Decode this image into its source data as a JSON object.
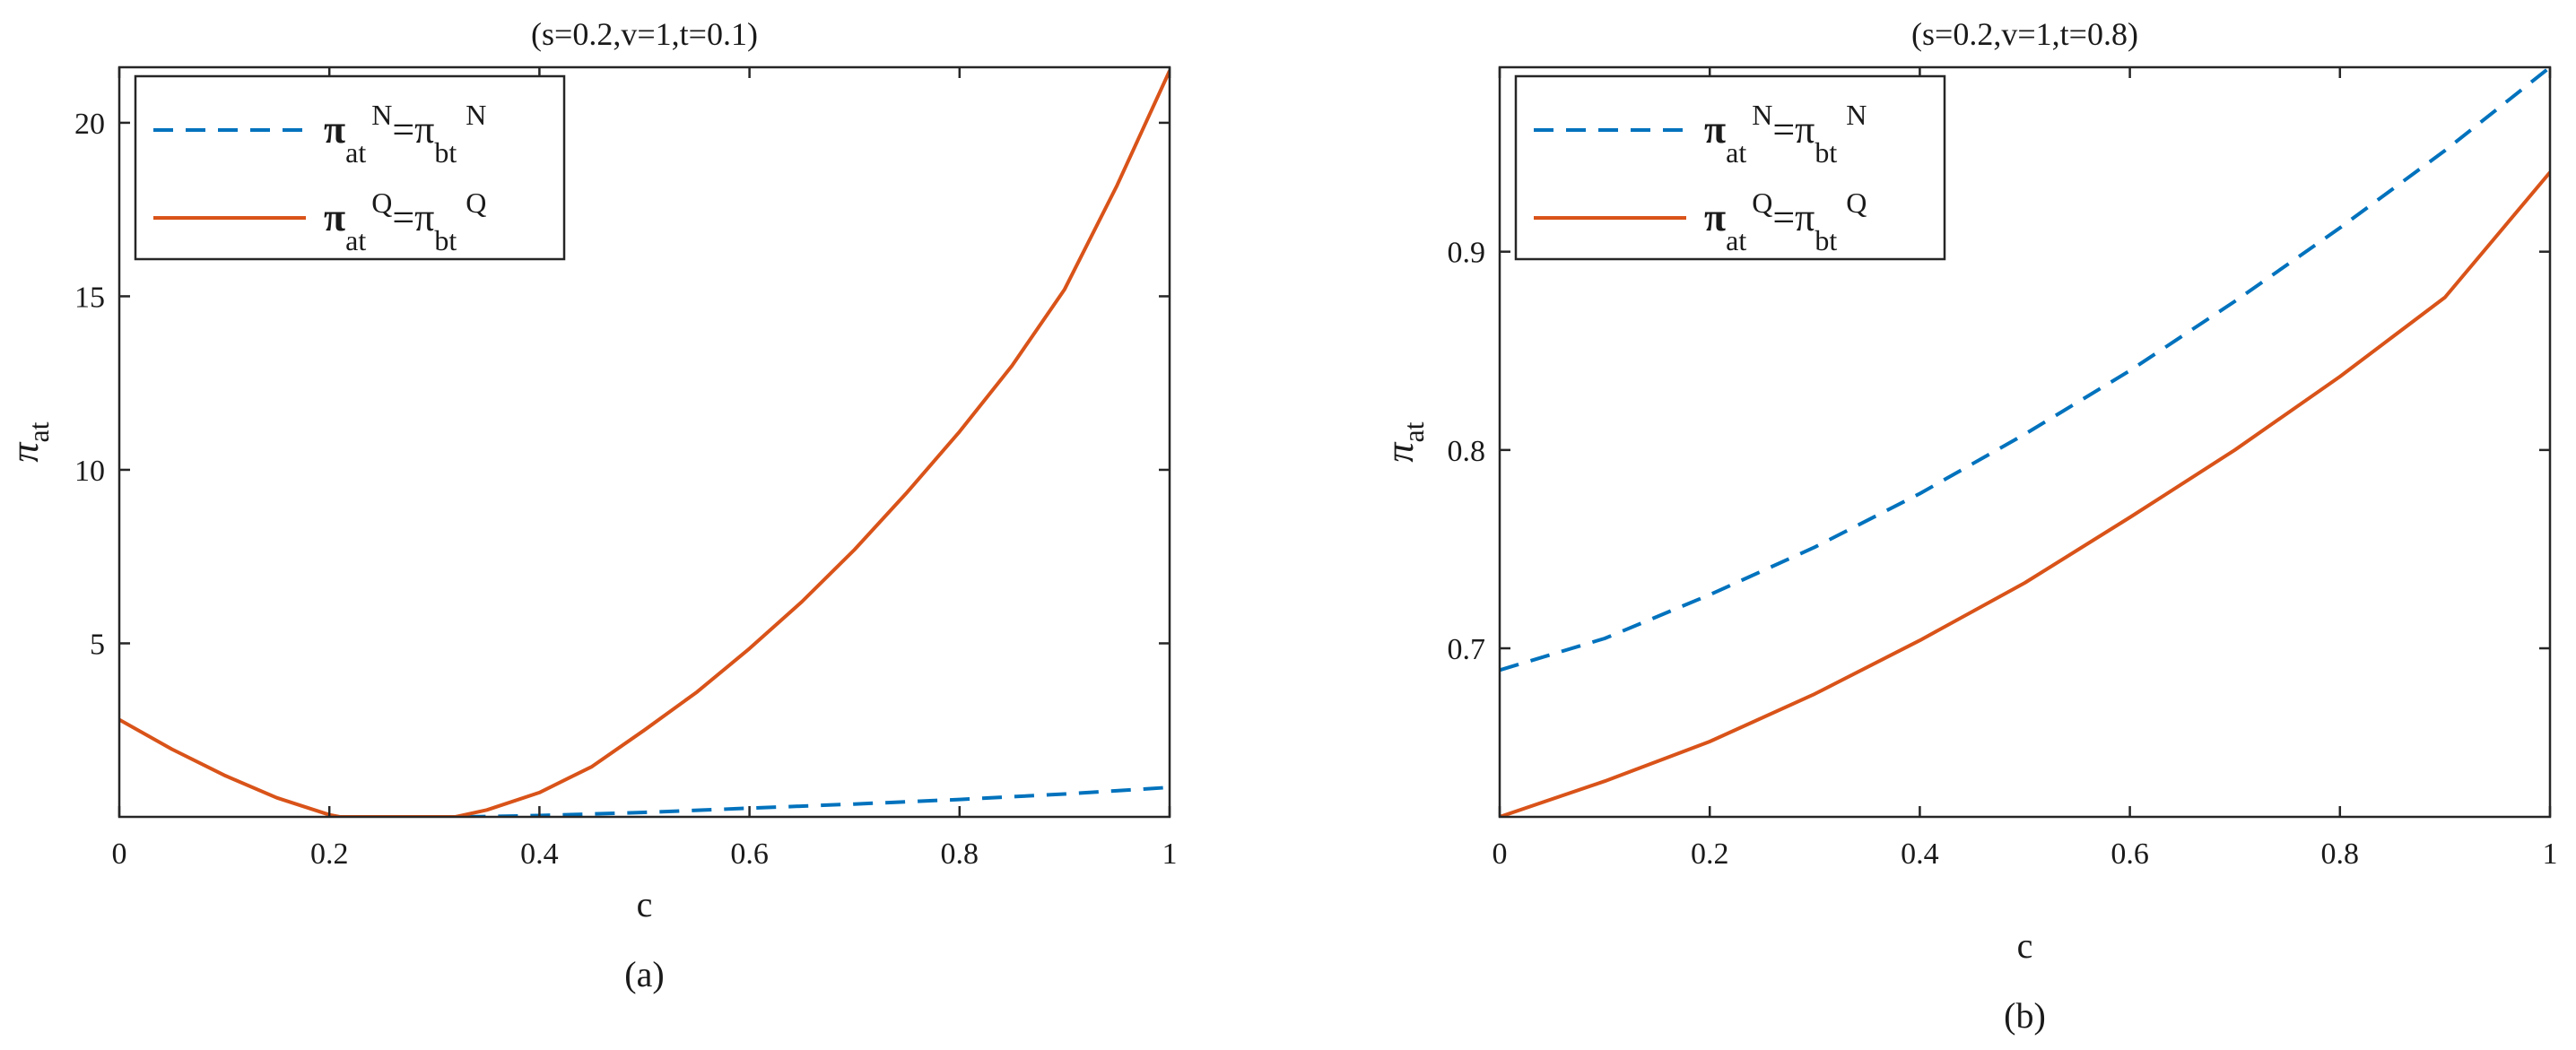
{
  "chart_data": [
    {
      "type": "line",
      "title": "(s=0.2,v=1,t=0.1)",
      "caption": "(a)",
      "xlabel": "c",
      "ylabel": {
        "base": "π",
        "sub": "at"
      },
      "xlim": [
        0,
        1
      ],
      "ylim": [
        0,
        21.6
      ],
      "xticks": [
        0,
        0.2,
        0.4,
        0.6,
        0.8,
        1
      ],
      "xtick_labels": [
        "0",
        "0.2",
        "0.4",
        "0.6",
        "0.8",
        "1"
      ],
      "yticks": [
        5,
        10,
        15,
        20
      ],
      "ytick_labels": [
        "5",
        "10",
        "15",
        "20"
      ],
      "legend_position": "top-left",
      "series": [
        {
          "name": "π_at^N=π_bt^N",
          "style": "dashed",
          "color": "#0072BD",
          "x": [
            0.33,
            0.4,
            0.5,
            0.6,
            0.7,
            0.8,
            0.9,
            1.0
          ],
          "y": [
            0.0,
            0.04,
            0.13,
            0.25,
            0.37,
            0.5,
            0.66,
            0.85
          ]
        },
        {
          "name": "π_at^Q=π_bt^Q",
          "style": "solid",
          "color": "#D95319",
          "x": [
            0,
            0.05,
            0.1,
            0.15,
            0.2,
            0.21,
            0.32,
            0.35,
            0.4,
            0.45,
            0.5,
            0.55,
            0.6,
            0.65,
            0.7,
            0.75,
            0.8,
            0.85,
            0.9,
            0.95,
            1.0
          ],
          "y": [
            2.8,
            1.95,
            1.2,
            0.55,
            0.06,
            0.0,
            0.0,
            0.2,
            0.7,
            1.45,
            2.5,
            3.6,
            4.85,
            6.2,
            7.7,
            9.35,
            11.1,
            13.0,
            15.2,
            18.2,
            21.5
          ]
        }
      ]
    },
    {
      "type": "line",
      "title": "(s=0.2,v=1,t=0.8)",
      "caption": "(b)",
      "xlabel": "c",
      "ylabel": {
        "base": "π",
        "sub": "at"
      },
      "xlim": [
        0,
        1
      ],
      "ylim": [
        0.615,
        0.993
      ],
      "xticks": [
        0,
        0.2,
        0.4,
        0.6,
        0.8,
        1
      ],
      "xtick_labels": [
        "0",
        "0.2",
        "0.4",
        "0.6",
        "0.8",
        "1"
      ],
      "yticks": [
        0.7,
        0.8,
        0.9
      ],
      "ytick_labels": [
        "0.7",
        "0.8",
        "0.9"
      ],
      "legend_position": "top-left",
      "series": [
        {
          "name": "π_at^N=π_bt^N",
          "style": "dashed",
          "color": "#0072BD",
          "x": [
            0,
            0.1,
            0.2,
            0.3,
            0.4,
            0.5,
            0.6,
            0.7,
            0.8,
            0.9,
            1.0
          ],
          "y": [
            0.689,
            0.705,
            0.727,
            0.751,
            0.778,
            0.808,
            0.84,
            0.875,
            0.912,
            0.951,
            0.993
          ]
        },
        {
          "name": "π_at^Q=π_bt^Q",
          "style": "solid",
          "color": "#D95319",
          "x": [
            0,
            0.1,
            0.2,
            0.3,
            0.4,
            0.5,
            0.6,
            0.7,
            0.8,
            0.9,
            1.0
          ],
          "y": [
            0.615,
            0.633,
            0.653,
            0.677,
            0.704,
            0.733,
            0.766,
            0.8,
            0.837,
            0.877,
            0.94
          ]
        }
      ]
    }
  ]
}
